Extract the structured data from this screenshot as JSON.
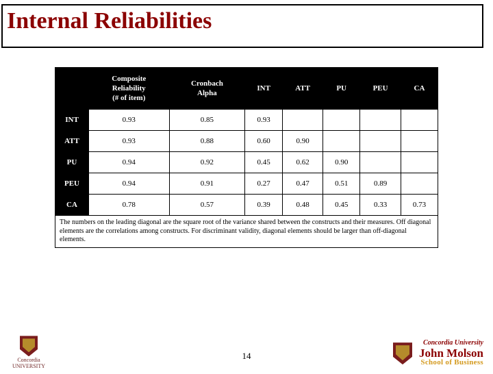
{
  "title": "Internal Reliabilities",
  "page_number": "14",
  "table": {
    "type": "table",
    "header_bg": "#000000",
    "header_fg": "#ffffff",
    "cell_bg": "#ffffff",
    "border_color": "#000000",
    "font_size": 11,
    "columns": [
      "",
      "Composite\nReliability\n(# of item)",
      "Cronbach\nAlpha",
      "INT",
      "ATT",
      "PU",
      "PEU",
      "CA"
    ],
    "rows": [
      {
        "label": "INT",
        "cells": [
          "0.93",
          "0.85",
          "0.93",
          "",
          "",
          "",
          ""
        ]
      },
      {
        "label": "ATT",
        "cells": [
          "0.93",
          "0.88",
          "0.60",
          "0.90",
          "",
          "",
          ""
        ]
      },
      {
        "label": "PU",
        "cells": [
          "0.94",
          "0.92",
          "0.45",
          "0.62",
          "0.90",
          "",
          ""
        ]
      },
      {
        "label": "PEU",
        "cells": [
          "0.94",
          "0.91",
          "0.27",
          "0.47",
          "0.51",
          "0.89",
          ""
        ]
      },
      {
        "label": "CA",
        "cells": [
          "0.78",
          "0.57",
          "0.39",
          "0.48",
          "0.45",
          "0.33",
          "0.73"
        ]
      }
    ],
    "footnote": "The numbers on the leading diagonal are the square root of the variance shared between the constructs and their measures. Off diagonal elements are the correlations among constructs. For discriminant validity, diagonal elements should be larger than off-diagonal elements."
  },
  "title_color": "#8b0000",
  "logo_left": {
    "line1": "Concordia",
    "line2": "UNIVERSITY"
  },
  "logo_right": {
    "univ": "Concordia University",
    "name": "John Molson",
    "sob": "School of Business"
  }
}
